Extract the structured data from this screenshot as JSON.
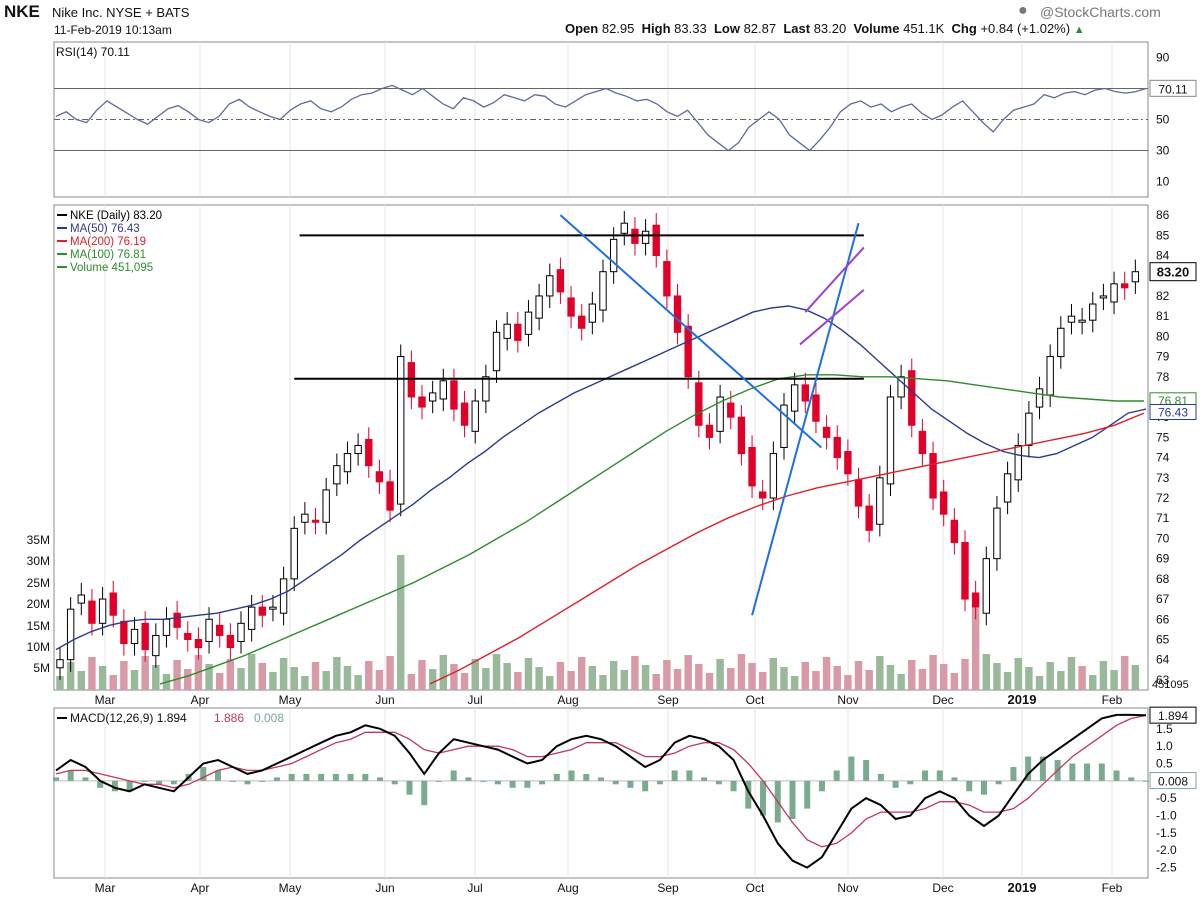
{
  "header": {
    "ticker": "NKE",
    "company": "Nike Inc. NYSE + BATS",
    "datetime": "11-Feb-2019 10:13am",
    "open_label": "Open",
    "open": "82.95",
    "high_label": "High",
    "high": "83.33",
    "low_label": "Low",
    "low": "82.87",
    "last_label": "Last",
    "last": "83.20",
    "volume_label": "Volume",
    "volume": "451.1K",
    "chg_label": "Chg",
    "chg": "+0.84 (+1.02%)",
    "chg_icon": "up-triangle-icon",
    "brand": "@StockCharts.com"
  },
  "chart_data": [
    {
      "type": "line",
      "name": "rsi-panel",
      "legend": "RSI(14) 70.11",
      "last_value_label": "70.11",
      "y_ticks": [
        90,
        70,
        50,
        30,
        10
      ],
      "ylim": [
        0,
        100
      ],
      "reference_lines": [
        70,
        50,
        30
      ],
      "series": [
        {
          "name": "RSI(14)",
          "values": [
            52,
            55,
            50,
            48,
            56,
            62,
            58,
            54,
            50,
            47,
            52,
            57,
            59,
            55,
            50,
            48,
            52,
            60,
            63,
            58,
            55,
            52,
            50,
            56,
            60,
            62,
            57,
            55,
            58,
            63,
            66,
            67,
            70,
            72,
            69,
            66,
            70,
            65,
            60,
            57,
            64,
            62,
            58,
            61,
            66,
            64,
            62,
            66,
            65,
            60,
            58,
            62,
            66,
            68,
            70,
            67,
            65,
            62,
            63,
            60,
            55,
            52,
            56,
            48,
            40,
            35,
            30,
            35,
            45,
            50,
            55,
            50,
            40,
            35,
            30,
            37,
            45,
            55,
            60,
            62,
            58,
            60,
            55,
            58,
            60,
            54,
            50,
            53,
            58,
            62,
            55,
            48,
            42,
            50,
            56,
            58,
            60,
            66,
            64,
            67,
            68,
            66,
            69,
            70,
            68,
            67,
            68,
            70
          ]
        }
      ],
      "color": "#5f6a9c"
    },
    {
      "type": "candlestick",
      "name": "price-panel",
      "legend": [
        "NKE (Daily) 83.20",
        "MA(50) 76.43",
        "MA(200) 76.19",
        "MA(100) 76.81",
        "Volume 451,095"
      ],
      "last_price_label": "83.20",
      "ma50_label": "76.43",
      "ma100_label": "76.81",
      "y_ticks": [
        86,
        85,
        84,
        83,
        82,
        81,
        80,
        79,
        78,
        77,
        76,
        75,
        74,
        73,
        72,
        71,
        70,
        69,
        68,
        67,
        66,
        65,
        64,
        63
      ],
      "ylim": [
        62.5,
        86.5
      ],
      "volume_ticks": [
        "35M",
        "30M",
        "25M",
        "20M",
        "15M",
        "10M",
        "5M"
      ],
      "volume_last_label": "451095",
      "x_ticks": [
        "Mar",
        "Apr",
        "May",
        "Jun",
        "Jul",
        "Aug",
        "Sep",
        "Oct",
        "Nov",
        "Dec",
        "2019",
        "Feb"
      ],
      "closes": [
        64.0,
        66.5,
        67.2,
        65.8,
        67.0,
        66.2,
        64.8,
        65.5,
        64.5,
        65.2,
        66.0,
        65.6,
        65.0,
        64.6,
        66.0,
        65.2,
        64.6,
        65.8,
        66.6,
        66.2,
        66.6,
        68.0,
        70.5,
        71.2,
        70.8,
        72.4,
        73.6,
        74.2,
        74.6,
        73.6,
        72.8,
        71.4,
        79.0,
        77.0,
        76.5,
        77.2,
        77.8,
        76.4,
        75.6,
        76.8,
        78.0,
        80.2,
        80.6,
        79.8,
        81.2,
        82.0,
        83.0,
        82.2,
        81.0,
        80.4,
        81.6,
        83.2,
        84.8,
        85.6,
        84.6,
        85.2,
        84.0,
        82.0,
        80.2,
        78.0,
        75.6,
        75.0,
        77.0,
        76.0,
        74.2,
        72.6,
        72.0,
        74.2,
        76.6,
        77.6,
        76.8,
        75.8,
        75.0,
        74.0,
        73.2,
        71.6,
        70.4,
        73.0,
        77.0,
        78.0,
        75.6,
        74.2,
        72.0,
        71.2,
        69.8,
        67.0,
        66.6,
        69.0,
        71.5,
        73.2,
        74.6,
        76.2,
        77.4,
        79.0,
        80.4,
        81.0,
        80.8,
        81.6,
        82.0,
        82.6,
        82.4,
        83.2
      ],
      "ma50": [
        64.5,
        65.0,
        65.4,
        65.7,
        65.9,
        66.0,
        66.0,
        66.1,
        66.2,
        66.3,
        66.5,
        66.7,
        67.0,
        67.4,
        68.0,
        68.6,
        69.2,
        69.9,
        70.5,
        71.1,
        71.7,
        72.4,
        73.0,
        73.7,
        74.3,
        75.0,
        75.6,
        76.2,
        76.7,
        77.2,
        77.6,
        78.0,
        78.4,
        78.8,
        79.2,
        79.6,
        80.0,
        80.4,
        80.8,
        81.2,
        81.4,
        81.5,
        81.3,
        80.9,
        80.3,
        79.6,
        78.8,
        78.0,
        77.2,
        76.4,
        75.8,
        75.2,
        74.7,
        74.3,
        74.1,
        74.0,
        74.2,
        74.6,
        75.0,
        75.6,
        76.2,
        76.4
      ],
      "ma100": [
        62.8,
        63.2,
        63.7,
        64.2,
        64.8,
        65.4,
        66.0,
        66.6,
        67.2,
        67.8,
        68.5,
        69.2,
        70.0,
        70.8,
        71.7,
        72.6,
        73.5,
        74.4,
        75.3,
        76.1,
        76.8,
        77.4,
        77.9,
        78.1,
        78.1,
        78.0,
        78.0,
        77.9,
        77.8,
        77.6,
        77.4,
        77.2,
        77.0,
        76.9,
        76.8,
        76.8
      ],
      "ma200": [
        62.8,
        63.5,
        64.3,
        65.1,
        66.0,
        66.9,
        67.8,
        68.7,
        69.5,
        70.3,
        71.0,
        71.6,
        72.1,
        72.5,
        72.8,
        73.1,
        73.4,
        73.7,
        74.0,
        74.3,
        74.6,
        74.9,
        75.2,
        75.6,
        76.2
      ],
      "trendlines": [
        {
          "name": "resistance-85",
          "from": [
            22.5,
            85.0
          ],
          "to": [
            75.5,
            85.0
          ],
          "color": "#000000"
        },
        {
          "name": "support-78",
          "from": [
            22.0,
            77.9
          ],
          "to": [
            75.5,
            77.9
          ],
          "color": "#000000"
        },
        {
          "name": "downtrend",
          "from": [
            47.0,
            86.0
          ],
          "to": [
            71.5,
            74.5
          ],
          "color": "#1e6fe0"
        },
        {
          "name": "uptrend",
          "from": [
            65.0,
            66.2
          ],
          "to": [
            75.0,
            85.6
          ],
          "color": "#1e6fe0"
        },
        {
          "name": "channel-upper",
          "from": [
            70.0,
            81.2
          ],
          "to": [
            75.5,
            84.4
          ],
          "color": "#a040d0"
        },
        {
          "name": "channel-lower",
          "from": [
            69.5,
            79.6
          ],
          "to": [
            75.5,
            82.3
          ],
          "color": "#a040d0"
        }
      ],
      "colors": {
        "up": "#000000",
        "down": "#e0002a",
        "ma50": "#2b3a8e",
        "ma100": "#2e8b2e",
        "ma200": "#e01f2a",
        "vol_up": "#9ab89a",
        "vol_down": "#d99aa8"
      }
    },
    {
      "type": "line",
      "name": "macd-panel",
      "legend": "MACD(12,26,9) 1.894, 1.886, 0.008",
      "legend_macd": "MACD(12,26,9) 1.894",
      "legend_signal": "1.886",
      "legend_hist": "0.008",
      "macd_label": "1.894",
      "hist_label": "0.008",
      "y_ticks": [
        "1.5",
        "1.0",
        "0.5",
        "0.0",
        "-0.5",
        "-1.0",
        "-1.5",
        "-2.0",
        "-2.5"
      ],
      "ylim": [
        -2.8,
        2.1
      ],
      "series": [
        {
          "name": "MACD",
          "values": [
            0.3,
            0.6,
            0.4,
            0.0,
            -0.2,
            -0.3,
            -0.1,
            -0.2,
            -0.3,
            0.1,
            0.5,
            0.6,
            0.4,
            0.2,
            0.3,
            0.5,
            0.7,
            0.9,
            1.1,
            1.3,
            1.4,
            1.6,
            1.5,
            1.3,
            0.8,
            0.2,
            0.8,
            1.2,
            1.1,
            1.0,
            0.9,
            0.7,
            0.5,
            0.6,
            1.0,
            1.2,
            1.3,
            1.2,
            1.0,
            0.7,
            0.4,
            0.6,
            1.1,
            1.3,
            1.2,
            1.0,
            0.6,
            -0.3,
            -1.0,
            -1.8,
            -2.3,
            -2.5,
            -2.2,
            -1.5,
            -0.8,
            -0.5,
            -0.7,
            -1.1,
            -1.0,
            -0.5,
            -0.3,
            -0.5,
            -1.0,
            -1.3,
            -1.0,
            -0.4,
            0.2,
            0.6,
            0.9,
            1.2,
            1.5,
            1.8,
            1.9,
            1.9,
            1.89
          ]
        },
        {
          "name": "Signal",
          "values": [
            0.2,
            0.3,
            0.3,
            0.2,
            0.1,
            0.0,
            -0.1,
            -0.1,
            -0.2,
            -0.1,
            0.1,
            0.3,
            0.4,
            0.3,
            0.3,
            0.4,
            0.5,
            0.7,
            0.9,
            1.1,
            1.2,
            1.4,
            1.4,
            1.4,
            1.2,
            0.9,
            0.8,
            0.9,
            1.0,
            1.0,
            1.0,
            0.9,
            0.7,
            0.7,
            0.8,
            0.9,
            1.1,
            1.1,
            1.1,
            0.9,
            0.7,
            0.7,
            0.8,
            1.0,
            1.1,
            1.1,
            0.9,
            0.5,
            0.0,
            -0.6,
            -1.2,
            -1.7,
            -1.9,
            -1.8,
            -1.5,
            -1.1,
            -0.9,
            -0.9,
            -0.9,
            -0.8,
            -0.6,
            -0.6,
            -0.7,
            -0.9,
            -0.9,
            -0.8,
            -0.5,
            -0.1,
            0.3,
            0.7,
            1.0,
            1.3,
            1.6,
            1.8,
            1.886
          ]
        }
      ],
      "colors": {
        "macd": "#000000",
        "signal": "#c0395a",
        "hist": "#7aab8e"
      }
    }
  ]
}
